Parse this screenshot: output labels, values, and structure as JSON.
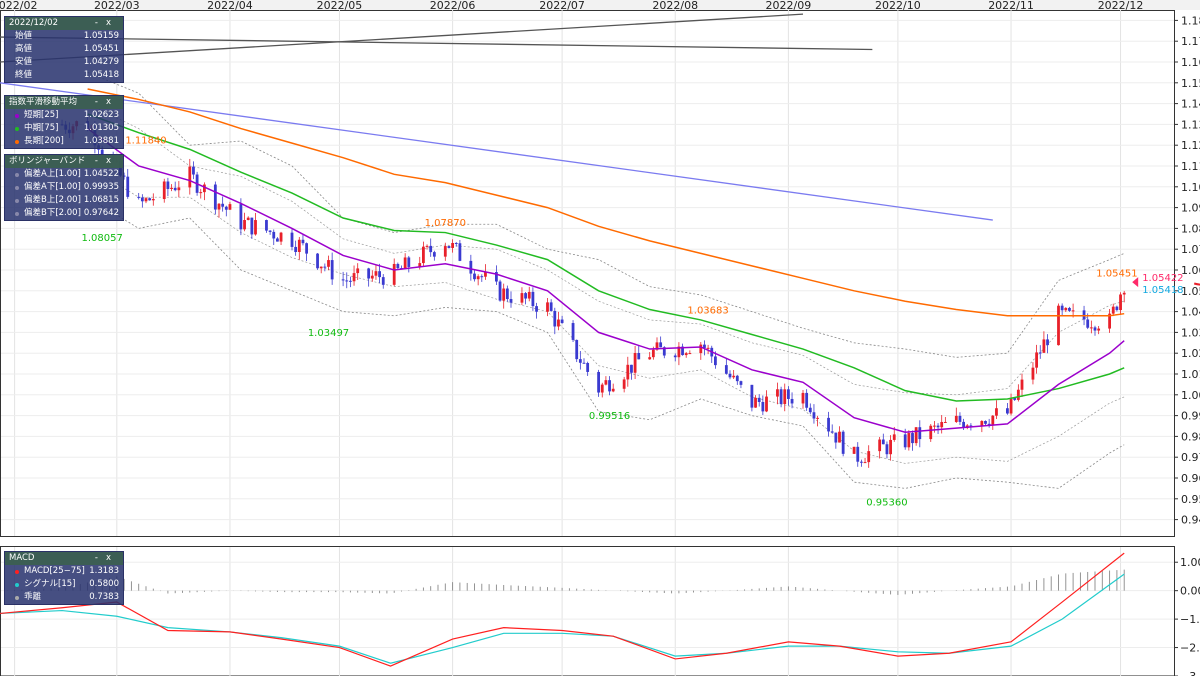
{
  "date_axis": [
    "2022/02",
    "2022/03",
    "2022/04",
    "2022/05",
    "2022/06",
    "2022/07",
    "2022/08",
    "2022/09",
    "2022/10",
    "2022/11",
    "2022/12"
  ],
  "price_axis": [
    "1.18000",
    "1.17000",
    "1.16000",
    "1.15000",
    "1.14000",
    "1.13000",
    "1.12000",
    "1.11000",
    "1.10000",
    "1.09000",
    "1.08000",
    "1.07000",
    "1.06000",
    "1.05000",
    "1.04000",
    "1.03000",
    "1.02000",
    "1.01000",
    "1.00000",
    "0.99000",
    "0.98000",
    "0.97000",
    "0.96000",
    "0.95000",
    "0.94000"
  ],
  "macd_axis": [
    "1.0000",
    "0.0000",
    "−1.0000",
    "−2.0000",
    "−3.0000"
  ],
  "ohlc_panel": {
    "date": "2022/12/02",
    "rows": [
      {
        "label": "始値",
        "value": "1.05159"
      },
      {
        "label": "高値",
        "value": "1.05451"
      },
      {
        "label": "安値",
        "value": "1.04279"
      },
      {
        "label": "終値",
        "value": "1.05418"
      }
    ]
  },
  "ema_panel": {
    "title": "指数平滑移動平均",
    "rows": [
      {
        "label": "短期[25]",
        "value": "1.02623",
        "color": "#9b00cc"
      },
      {
        "label": "中期[75]",
        "value": "1.01305",
        "color": "#22bb22"
      },
      {
        "label": "長期[200]",
        "value": "1.03881",
        "color": "#ff6a00"
      }
    ]
  },
  "bb_panel": {
    "title": "ボリンジャーバンド",
    "rows": [
      {
        "label": "偏差A上[1.00]",
        "value": "1.04522",
        "color": "#8888aa"
      },
      {
        "label": "偏差A下[1.00]",
        "value": "0.99935",
        "color": "#8888aa"
      },
      {
        "label": "偏差B上[2.00]",
        "value": "1.06815",
        "color": "#8888aa"
      },
      {
        "label": "偏差B下[2.00]",
        "value": "0.97642",
        "color": "#8888aa"
      }
    ]
  },
  "macd_panel": {
    "title": "MACD",
    "rows": [
      {
        "label": "MACD[25−75]",
        "value": "1.3183",
        "color": "#ff2020"
      },
      {
        "label": "シグナル[15]",
        "value": "0.5800",
        "color": "#22cccc"
      },
      {
        "label": "乖離",
        "value": "0.7383",
        "color": "#aaaaaa"
      }
    ]
  },
  "annotations": [
    {
      "text": "1.11840",
      "color": "#ff6a00",
      "date": "2022-03-09",
      "y": 1.1184,
      "pos": "above"
    },
    {
      "text": "1.08057",
      "color": "#11bb11",
      "date": "2022-02-25",
      "y": 1.0806,
      "pos": "below"
    },
    {
      "text": "1.03497",
      "color": "#11bb11",
      "date": "2022-04-28",
      "y": 1.035,
      "pos": "below"
    },
    {
      "text": "1.07870",
      "color": "#ff6a00",
      "date": "2022-05-30",
      "y": 1.0787,
      "pos": "above"
    },
    {
      "text": "0.99516",
      "color": "#11bb11",
      "date": "2022-07-14",
      "y": 0.9952,
      "pos": "below"
    },
    {
      "text": "1.03683",
      "color": "#ff6a00",
      "date": "2022-08-10",
      "y": 1.0368,
      "pos": "above"
    },
    {
      "text": "0.95360",
      "color": "#11bb11",
      "date": "2022-09-28",
      "y": 0.9536,
      "pos": "below"
    },
    {
      "text": "1.05451",
      "color": "#ff6a00",
      "date": "2022-11-30",
      "y": 1.0545,
      "pos": "above"
    }
  ],
  "last_price": {
    "top": "1.05422",
    "bottom": "1.05418",
    "top_color": "#ff2a6a",
    "bottom_color": "#11a8e0"
  },
  "chart_data": {
    "type": "candlestick",
    "x_range": [
      "2022-01-28",
      "2022-12-14"
    ],
    "price_range": [
      0.935,
      1.185
    ],
    "macd_range": [
      -3.0,
      1.5
    ],
    "candles": {
      "dates": [
        "2022-02-21",
        "2022-03-07",
        "2022-03-21",
        "2022-04-04",
        "2022-04-18",
        "2022-05-02",
        "2022-05-16",
        "2022-05-30",
        "2022-06-13",
        "2022-06-27",
        "2022-07-11",
        "2022-07-25",
        "2022-08-08",
        "2022-08-22",
        "2022-09-05",
        "2022-09-19",
        "2022-10-03",
        "2022-10-17",
        "2022-10-31",
        "2022-11-14",
        "2022-11-28",
        "2022-12-02"
      ],
      "close": [
        1.13,
        1.091,
        1.105,
        1.083,
        1.075,
        1.055,
        1.058,
        1.074,
        1.05,
        1.042,
        1.003,
        1.02,
        1.025,
        0.996,
        1.0,
        0.97,
        0.978,
        0.987,
        0.991,
        1.038,
        1.035,
        1.054
      ]
    },
    "ema25": {
      "dates": [
        "2022-02-21",
        "2022-03-07",
        "2022-03-21",
        "2022-04-04",
        "2022-04-18",
        "2022-05-02",
        "2022-05-16",
        "2022-05-30",
        "2022-06-13",
        "2022-06-27",
        "2022-07-11",
        "2022-07-25",
        "2022-08-08",
        "2022-08-22",
        "2022-09-05",
        "2022-09-19",
        "2022-10-03",
        "2022-10-17",
        "2022-10-31",
        "2022-11-14",
        "2022-11-28",
        "2022-12-02"
      ],
      "values": [
        1.128,
        1.11,
        1.103,
        1.092,
        1.08,
        1.067,
        1.06,
        1.063,
        1.058,
        1.05,
        1.03,
        1.022,
        1.023,
        1.012,
        1.006,
        0.989,
        0.982,
        0.984,
        0.986,
        1.005,
        1.02,
        1.026
      ]
    },
    "ema75": {
      "dates": [
        "2022-02-21",
        "2022-03-07",
        "2022-03-21",
        "2022-04-04",
        "2022-04-18",
        "2022-05-02",
        "2022-05-16",
        "2022-05-30",
        "2022-06-13",
        "2022-06-27",
        "2022-07-11",
        "2022-07-25",
        "2022-08-08",
        "2022-08-22",
        "2022-09-05",
        "2022-09-19",
        "2022-10-03",
        "2022-10-17",
        "2022-10-31",
        "2022-11-14",
        "2022-11-28",
        "2022-12-02"
      ],
      "values": [
        1.135,
        1.126,
        1.118,
        1.107,
        1.097,
        1.085,
        1.079,
        1.078,
        1.072,
        1.065,
        1.05,
        1.041,
        1.036,
        1.029,
        1.022,
        1.013,
        1.002,
        0.997,
        0.998,
        1.003,
        1.01,
        1.013
      ]
    },
    "ema200": {
      "dates": [
        "2022-02-21",
        "2022-03-07",
        "2022-03-21",
        "2022-04-04",
        "2022-04-18",
        "2022-05-02",
        "2022-05-16",
        "2022-05-30",
        "2022-06-13",
        "2022-06-27",
        "2022-07-11",
        "2022-07-25",
        "2022-08-08",
        "2022-08-22",
        "2022-09-05",
        "2022-09-19",
        "2022-10-03",
        "2022-10-17",
        "2022-10-31",
        "2022-11-14",
        "2022-11-28",
        "2022-12-02"
      ],
      "values": [
        1.147,
        1.142,
        1.136,
        1.128,
        1.121,
        1.114,
        1.106,
        1.102,
        1.096,
        1.09,
        1.081,
        1.074,
        1.068,
        1.062,
        1.056,
        1.05,
        1.045,
        1.041,
        1.038,
        1.038,
        1.038,
        1.039
      ]
    },
    "bb_upper2": {
      "dates": [
        "2022-02-21",
        "2022-03-07",
        "2022-03-21",
        "2022-04-04",
        "2022-04-18",
        "2022-05-02",
        "2022-05-16",
        "2022-05-30",
        "2022-06-13",
        "2022-06-27",
        "2022-07-11",
        "2022-07-25",
        "2022-08-08",
        "2022-08-22",
        "2022-09-05",
        "2022-09-19",
        "2022-10-03",
        "2022-10-17",
        "2022-10-31",
        "2022-11-14",
        "2022-11-28",
        "2022-12-02"
      ],
      "values": [
        1.155,
        1.145,
        1.12,
        1.122,
        1.11,
        1.085,
        1.078,
        1.082,
        1.082,
        1.07,
        1.065,
        1.052,
        1.048,
        1.04,
        1.032,
        1.025,
        1.022,
        1.018,
        1.02,
        1.055,
        1.065,
        1.068
      ]
    },
    "bb_lower2": {
      "dates": [
        "2022-02-21",
        "2022-03-07",
        "2022-03-21",
        "2022-04-04",
        "2022-04-18",
        "2022-05-02",
        "2022-05-16",
        "2022-05-30",
        "2022-06-13",
        "2022-06-27",
        "2022-07-11",
        "2022-07-25",
        "2022-08-08",
        "2022-08-22",
        "2022-09-05",
        "2022-09-19",
        "2022-10-03",
        "2022-10-17",
        "2022-10-31",
        "2022-11-14",
        "2022-11-28",
        "2022-12-02"
      ],
      "values": [
        1.095,
        1.08,
        1.085,
        1.06,
        1.05,
        1.04,
        1.038,
        1.042,
        1.04,
        1.03,
        0.992,
        0.988,
        0.998,
        0.99,
        0.985,
        0.958,
        0.955,
        0.96,
        0.958,
        0.955,
        0.972,
        0.976
      ]
    },
    "bb_upper1": {
      "dates": [
        "2022-02-21",
        "2022-03-07",
        "2022-03-21",
        "2022-04-04",
        "2022-04-18",
        "2022-05-02",
        "2022-05-16",
        "2022-05-30",
        "2022-06-13",
        "2022-06-27",
        "2022-07-11",
        "2022-07-25",
        "2022-08-08",
        "2022-08-22",
        "2022-09-05",
        "2022-09-19",
        "2022-10-03",
        "2022-10-17",
        "2022-10-31",
        "2022-11-14",
        "2022-11-28",
        "2022-12-02"
      ],
      "values": [
        1.14,
        1.128,
        1.11,
        1.105,
        1.093,
        1.075,
        1.068,
        1.072,
        1.07,
        1.06,
        1.045,
        1.036,
        1.034,
        1.025,
        1.019,
        1.005,
        1.001,
        1.0,
        1.003,
        1.03,
        1.043,
        1.045
      ]
    },
    "bb_lower1": {
      "dates": [
        "2022-02-21",
        "2022-03-07",
        "2022-03-21",
        "2022-04-04",
        "2022-04-18",
        "2022-05-02",
        "2022-05-16",
        "2022-05-30",
        "2022-06-13",
        "2022-06-27",
        "2022-07-11",
        "2022-07-25",
        "2022-08-08",
        "2022-08-22",
        "2022-09-05",
        "2022-09-19",
        "2022-10-03",
        "2022-10-17",
        "2022-10-31",
        "2022-11-14",
        "2022-11-28",
        "2022-12-02"
      ],
      "values": [
        1.11,
        1.095,
        1.095,
        1.078,
        1.066,
        1.058,
        1.052,
        1.054,
        1.046,
        1.04,
        1.014,
        1.008,
        1.012,
        0.999,
        0.993,
        0.973,
        0.967,
        0.97,
        0.968,
        0.98,
        0.996,
        0.999
      ]
    },
    "trendlines": [
      {
        "color": "#555555",
        "from": [
          "2022-01-28",
          1.16
        ],
        "to": [
          "2022-09-05",
          1.183
        ]
      },
      {
        "color": "#555555",
        "from": [
          "2022-01-28",
          1.172
        ],
        "to": [
          "2022-09-24",
          1.166
        ]
      },
      {
        "color": "#7b7bf0",
        "from": [
          "2022-01-28",
          1.15
        ],
        "to": [
          "2022-10-27",
          1.084
        ]
      }
    ],
    "macd": {
      "dates": [
        "2022-01-28",
        "2022-02-14",
        "2022-03-01",
        "2022-03-15",
        "2022-04-01",
        "2022-04-15",
        "2022-05-01",
        "2022-05-15",
        "2022-06-01",
        "2022-06-15",
        "2022-07-01",
        "2022-07-15",
        "2022-08-01",
        "2022-08-15",
        "2022-09-01",
        "2022-09-15",
        "2022-10-01",
        "2022-10-15",
        "2022-11-01",
        "2022-11-15",
        "2022-12-02"
      ],
      "values": [
        -0.8,
        -0.6,
        -0.4,
        -1.4,
        -1.45,
        -1.7,
        -2.0,
        -2.65,
        -1.7,
        -1.3,
        -1.4,
        -1.6,
        -2.4,
        -2.2,
        -1.8,
        -1.95,
        -2.3,
        -2.2,
        -1.8,
        -0.4,
        1.32
      ]
    },
    "signal": {
      "dates": [
        "2022-01-28",
        "2022-02-14",
        "2022-03-01",
        "2022-03-15",
        "2022-04-01",
        "2022-04-15",
        "2022-05-01",
        "2022-05-15",
        "2022-06-01",
        "2022-06-15",
        "2022-07-01",
        "2022-07-15",
        "2022-08-01",
        "2022-08-15",
        "2022-09-01",
        "2022-09-15",
        "2022-10-01",
        "2022-10-15",
        "2022-11-01",
        "2022-11-15",
        "2022-12-02"
      ],
      "values": [
        -0.8,
        -0.7,
        -0.9,
        -1.3,
        -1.45,
        -1.65,
        -1.95,
        -2.55,
        -2.0,
        -1.5,
        -1.5,
        -1.6,
        -2.3,
        -2.2,
        -1.95,
        -1.95,
        -2.15,
        -2.2,
        -1.95,
        -1.0,
        0.58
      ]
    }
  }
}
